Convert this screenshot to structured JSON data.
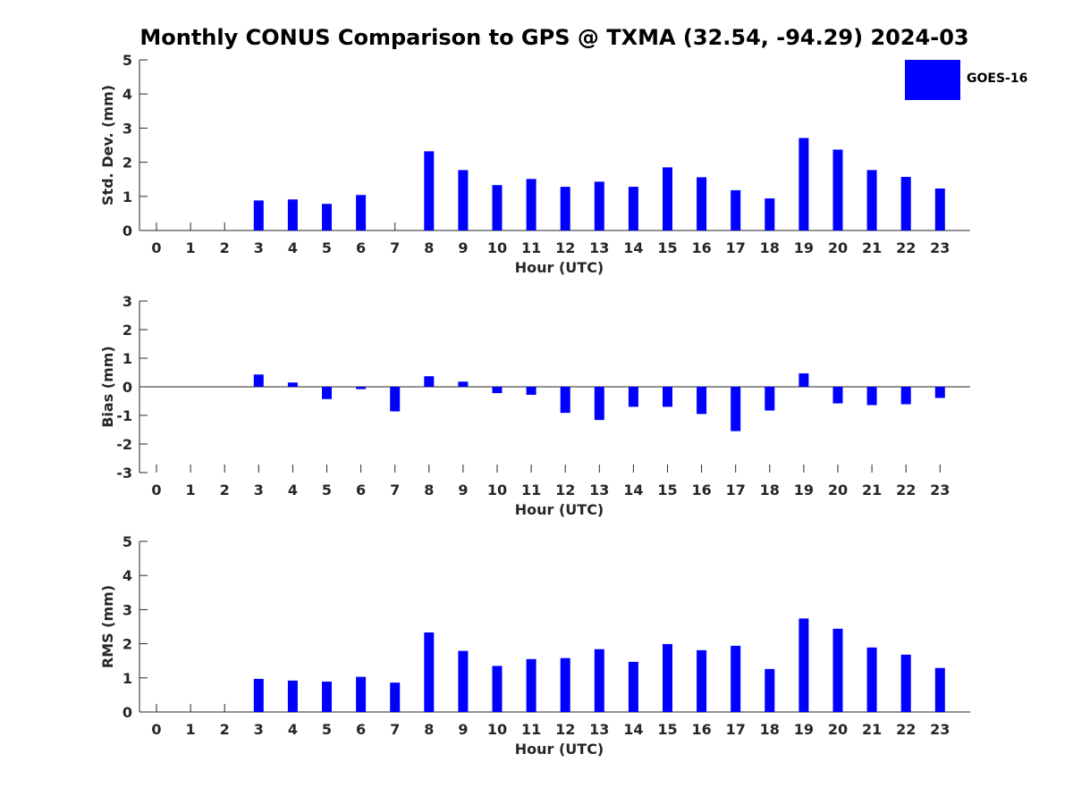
{
  "title": "Monthly CONUS Comparison to GPS @ TXMA (32.54, -94.29) 2024-03",
  "bar_color": "#0000ff",
  "legend": {
    "label": "GOES-16"
  },
  "chart_data": [
    {
      "type": "bar",
      "xlabel": "Hour (UTC)",
      "ylabel": "Std. Dev. (mm)",
      "ylim": [
        0,
        5
      ],
      "yticks": [
        0,
        1,
        2,
        3,
        4,
        5
      ],
      "categories": [
        "0",
        "1",
        "2",
        "3",
        "4",
        "5",
        "6",
        "7",
        "8",
        "9",
        "10",
        "11",
        "12",
        "13",
        "14",
        "15",
        "16",
        "17",
        "18",
        "19",
        "20",
        "21",
        "22",
        "23"
      ],
      "series": [
        {
          "name": "GOES-16",
          "values": [
            null,
            null,
            null,
            0.88,
            0.91,
            0.78,
            1.04,
            null,
            2.32,
            1.77,
            1.33,
            1.51,
            1.28,
            1.43,
            1.28,
            1.85,
            1.56,
            1.18,
            0.94,
            2.71,
            2.37,
            1.77,
            1.57,
            1.23
          ]
        }
      ],
      "grid": false
    },
    {
      "type": "bar",
      "xlabel": "Hour (UTC)",
      "ylabel": "Bias (mm)",
      "ylim": [
        -3,
        3
      ],
      "yticks": [
        -3,
        -2,
        -1,
        0,
        1,
        2,
        3
      ],
      "categories": [
        "0",
        "1",
        "2",
        "3",
        "4",
        "5",
        "6",
        "7",
        "8",
        "9",
        "10",
        "11",
        "12",
        "13",
        "14",
        "15",
        "16",
        "17",
        "18",
        "19",
        "20",
        "21",
        "22",
        "23"
      ],
      "series": [
        {
          "name": "GOES-16",
          "values": [
            null,
            null,
            null,
            0.43,
            0.15,
            -0.43,
            -0.08,
            -0.86,
            0.37,
            0.18,
            -0.22,
            -0.28,
            -0.91,
            -1.16,
            -0.7,
            -0.7,
            -0.95,
            -1.55,
            -0.83,
            0.47,
            -0.58,
            -0.64,
            -0.61,
            -0.39
          ]
        }
      ],
      "grid": false
    },
    {
      "type": "bar",
      "xlabel": "Hour (UTC)",
      "ylabel": "RMS (mm)",
      "ylim": [
        0,
        5
      ],
      "yticks": [
        0,
        1,
        2,
        3,
        4,
        5
      ],
      "categories": [
        "0",
        "1",
        "2",
        "3",
        "4",
        "5",
        "6",
        "7",
        "8",
        "9",
        "10",
        "11",
        "12",
        "13",
        "14",
        "15",
        "16",
        "17",
        "18",
        "19",
        "20",
        "21",
        "22",
        "23"
      ],
      "series": [
        {
          "name": "GOES-16",
          "values": [
            null,
            null,
            null,
            0.97,
            0.92,
            0.89,
            1.03,
            0.86,
            2.33,
            1.79,
            1.35,
            1.55,
            1.58,
            1.84,
            1.47,
            1.99,
            1.81,
            1.94,
            1.26,
            2.74,
            2.44,
            1.89,
            1.68,
            1.29
          ]
        }
      ],
      "grid": false
    }
  ]
}
